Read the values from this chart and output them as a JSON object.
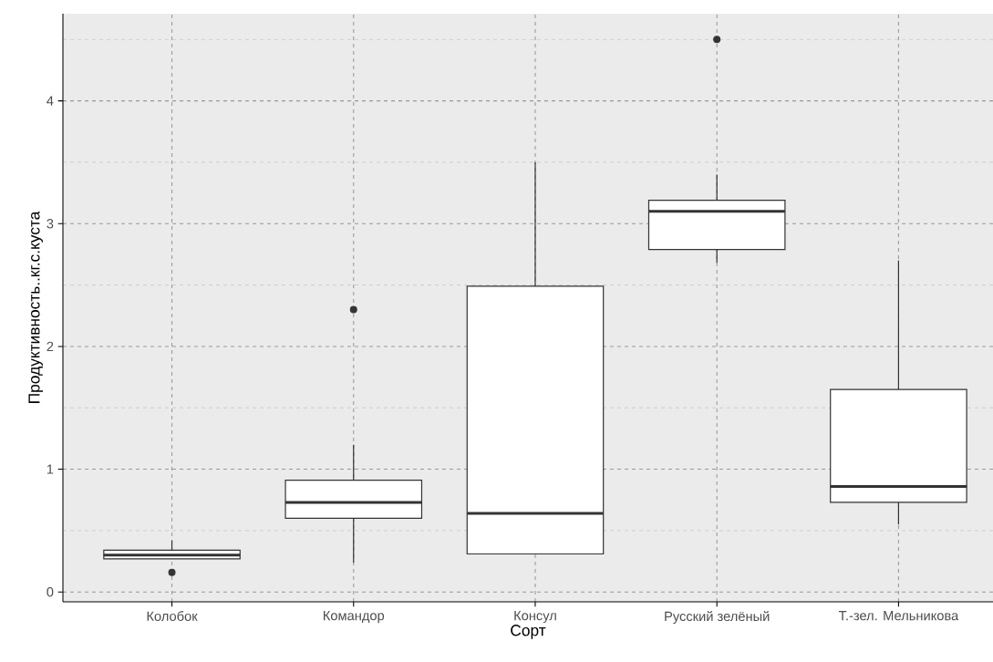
{
  "chart_data": {
    "type": "box",
    "xlabel": "Сорт",
    "ylabel": "Продуктивность..кг.с.куста",
    "categories": [
      "Колобок",
      "Командор",
      "Консул",
      "Русский зелёный",
      "Т.-зел. Мельникова"
    ],
    "boxes": [
      {
        "low": 0.27,
        "q1": 0.27,
        "median": 0.3,
        "q3": 0.34,
        "high": 0.42,
        "outliers": [
          0.16
        ]
      },
      {
        "low": 0.24,
        "q1": 0.6,
        "median": 0.73,
        "q3": 0.91,
        "high": 1.2,
        "outliers": [
          2.3
        ]
      },
      {
        "low": 0.31,
        "q1": 0.31,
        "median": 0.64,
        "q3": 2.49,
        "high": 3.5
      },
      {
        "low": 2.68,
        "q1": 2.79,
        "median": 3.1,
        "q3": 3.19,
        "high": 3.4,
        "outliers": [
          4.5
        ]
      },
      {
        "low": 0.55,
        "q1": 0.73,
        "median": 0.86,
        "q3": 1.65,
        "high": 2.7
      }
    ],
    "color": "#333333",
    "ylim": [
      -0.08,
      4.71
    ],
    "yticks": [
      0,
      1,
      2,
      3,
      4
    ],
    "grid": true
  }
}
